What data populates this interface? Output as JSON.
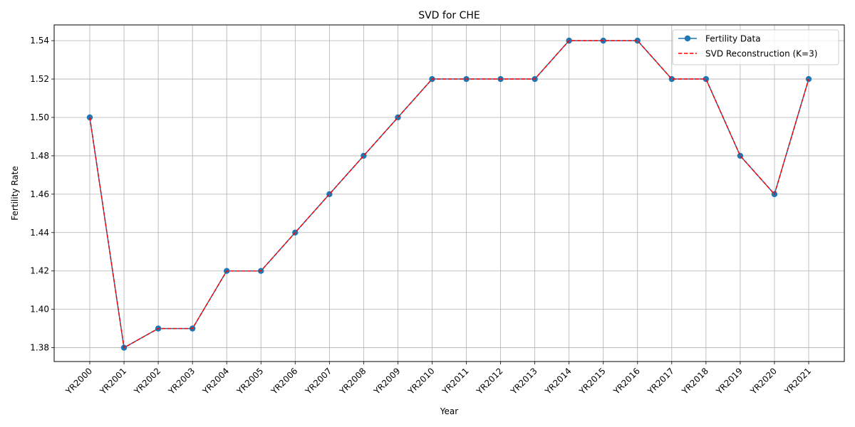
{
  "chart_data": {
    "type": "line",
    "title": "SVD for CHE",
    "xlabel": "Year",
    "ylabel": "Fertility Rate",
    "categories": [
      "YR2000",
      "YR2001",
      "YR2002",
      "YR2003",
      "YR2004",
      "YR2005",
      "YR2006",
      "YR2007",
      "YR2008",
      "YR2009",
      "YR2010",
      "YR2011",
      "YR2012",
      "YR2013",
      "YR2014",
      "YR2015",
      "YR2016",
      "YR2017",
      "YR2018",
      "YR2019",
      "YR2020",
      "YR2021"
    ],
    "ylim": [
      1.3728,
      1.5482
    ],
    "yticks": [
      "1.38",
      "1.40",
      "1.42",
      "1.44",
      "1.46",
      "1.48",
      "1.50",
      "1.52",
      "1.54"
    ],
    "grid": true,
    "legend_position": "top-right",
    "series": [
      {
        "name": "Fertility Data",
        "style": "solid-line-circle-markers",
        "color": "#1f77b4",
        "values": [
          1.5,
          1.38,
          1.39,
          1.39,
          1.42,
          1.42,
          1.44,
          1.46,
          1.48,
          1.5,
          1.52,
          1.52,
          1.52,
          1.52,
          1.54,
          1.54,
          1.54,
          1.52,
          1.52,
          1.48,
          1.46,
          1.52
        ]
      },
      {
        "name": "SVD Reconstruction (K=3)",
        "style": "dashed-line",
        "color": "#ff0000",
        "values": [
          1.5,
          1.38,
          1.39,
          1.39,
          1.42,
          1.42,
          1.44,
          1.46,
          1.48,
          1.5,
          1.52,
          1.52,
          1.52,
          1.52,
          1.54,
          1.54,
          1.54,
          1.52,
          1.52,
          1.48,
          1.46,
          1.52
        ]
      }
    ]
  }
}
